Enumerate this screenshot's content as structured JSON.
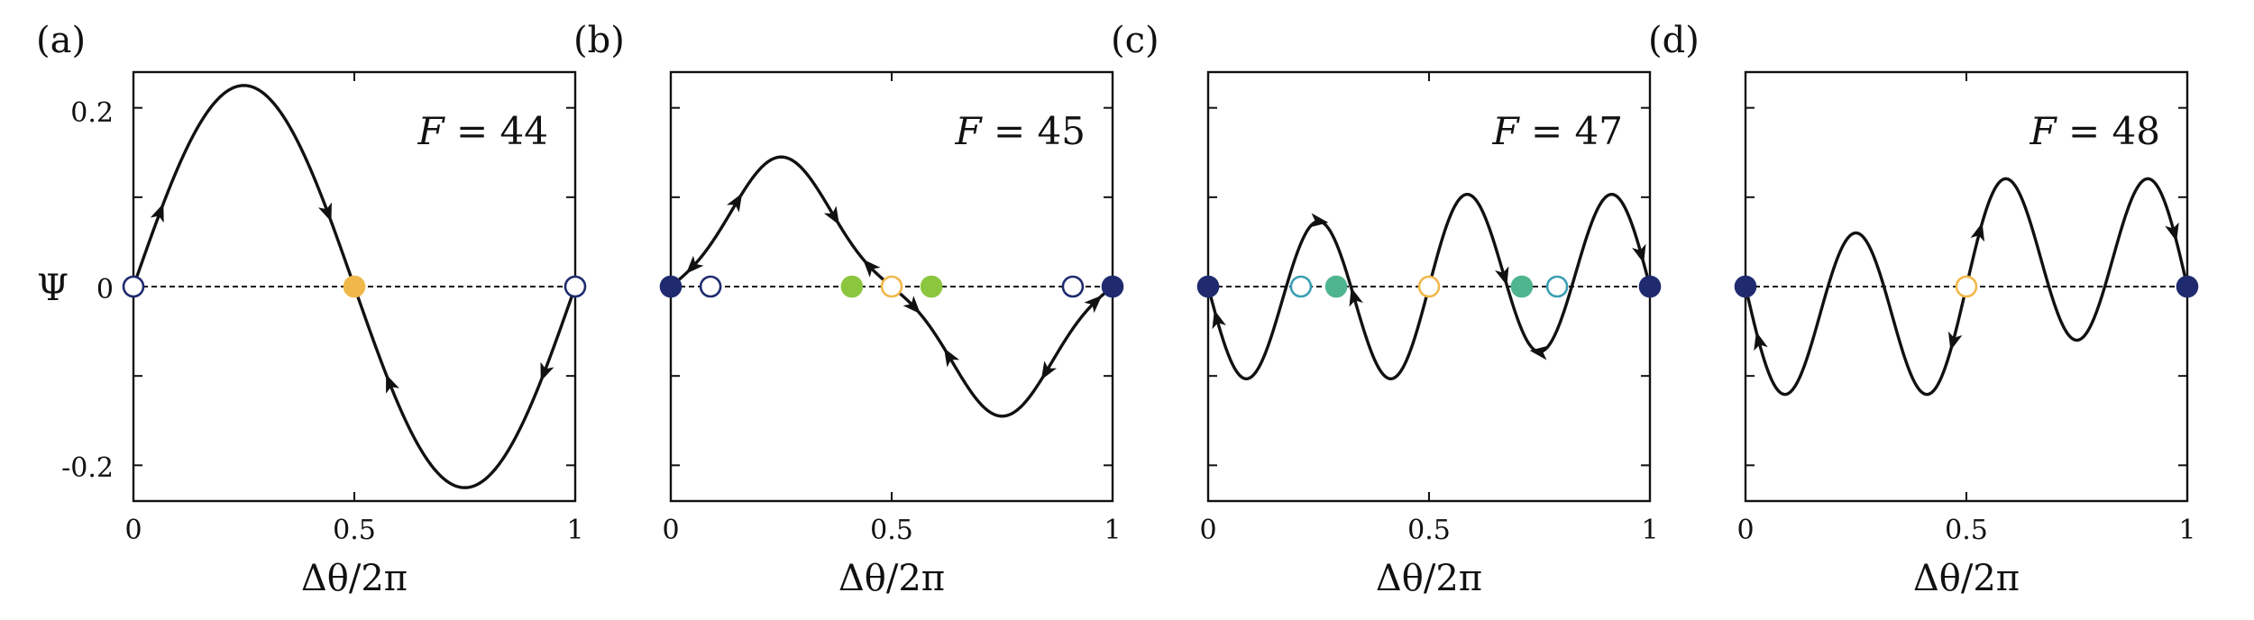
{
  "chart_data": [
    {
      "type": "line",
      "panel_label": "(a)",
      "annotation": {
        "var": "F",
        "eq": " = ",
        "value": "44"
      },
      "xlabel": "Δθ/2π",
      "ylabel": "Ψ",
      "xlim": [
        0,
        1
      ],
      "ylim": [
        -0.24,
        0.24
      ],
      "xticks": [
        "0",
        "0.5",
        "1"
      ],
      "yticks": [
        "0.2",
        "0",
        "-0.2"
      ],
      "baseline": {
        "y": 0,
        "style": "dashed"
      },
      "curve": {
        "type": "sin_sum",
        "terms": [
          {
            "k": 1,
            "amp": 0.225
          }
        ]
      },
      "fixed_points": [
        {
          "x": 0,
          "stable": false,
          "color": "#1f2b6e"
        },
        {
          "x": 0.5,
          "stable": true,
          "color": "#f0b84a"
        },
        {
          "x": 1,
          "stable": false,
          "color": "#1f2b6e"
        }
      ],
      "arrows": [
        {
          "x": 0.06,
          "dir": "right"
        },
        {
          "x": 0.44,
          "dir": "right"
        },
        {
          "x": 0.58,
          "dir": "left"
        },
        {
          "x": 0.93,
          "dir": "left"
        }
      ]
    },
    {
      "type": "line",
      "panel_label": "(b)",
      "annotation": {
        "var": "F",
        "eq": " = ",
        "value": "45"
      },
      "xlabel": "Δθ/2π",
      "ylabel": "",
      "xlim": [
        0,
        1
      ],
      "ylim": [
        -0.24,
        0.24
      ],
      "xticks": [
        "0",
        "0.5",
        "1"
      ],
      "yticks": [],
      "baseline": {
        "y": 0,
        "style": "dashed"
      },
      "curve": {
        "type": "sin_sum",
        "terms": [
          {
            "k": 1,
            "amp": 0.125
          },
          {
            "k": 3,
            "amp": -0.02
          }
        ]
      },
      "fixed_points": [
        {
          "x": 0,
          "stable": true,
          "color": "#1f2b6e"
        },
        {
          "x": 0.09,
          "stable": false,
          "color": "#1f2b6e"
        },
        {
          "x": 0.41,
          "stable": true,
          "color": "#8cc63f"
        },
        {
          "x": 0.5,
          "stable": false,
          "color": "#f0b84a"
        },
        {
          "x": 0.59,
          "stable": true,
          "color": "#8cc63f"
        },
        {
          "x": 0.91,
          "stable": false,
          "color": "#1f2b6e"
        },
        {
          "x": 1,
          "stable": true,
          "color": "#1f2b6e"
        }
      ],
      "arrows": [
        {
          "x": 0.05,
          "dir": "left"
        },
        {
          "x": 0.15,
          "dir": "right"
        },
        {
          "x": 0.37,
          "dir": "right"
        },
        {
          "x": 0.45,
          "dir": "left"
        },
        {
          "x": 0.55,
          "dir": "right"
        },
        {
          "x": 0.63,
          "dir": "left"
        },
        {
          "x": 0.85,
          "dir": "left"
        },
        {
          "x": 0.96,
          "dir": "right"
        }
      ]
    },
    {
      "type": "line",
      "panel_label": "(c)",
      "annotation": {
        "var": "F",
        "eq": " = ",
        "value": "47"
      },
      "xlabel": "Δθ/2π",
      "ylabel": "",
      "xlim": [
        0,
        1
      ],
      "ylim": [
        -0.24,
        0.24
      ],
      "xticks": [
        "0",
        "0.5",
        "1"
      ],
      "yticks": [],
      "baseline": {
        "y": 0,
        "style": "dashed"
      },
      "curve": {
        "type": "sin_sum",
        "terms": [
          {
            "k": 1,
            "amp": -0.02
          },
          {
            "k": 3,
            "amp": -0.093
          }
        ]
      },
      "fixed_points": [
        {
          "x": 0,
          "stable": true,
          "color": "#1f2b6e"
        },
        {
          "x": 0.21,
          "stable": false,
          "color": "#3a9fb3"
        },
        {
          "x": 0.29,
          "stable": true,
          "color": "#4fb58f"
        },
        {
          "x": 0.5,
          "stable": false,
          "color": "#f0b84a"
        },
        {
          "x": 0.71,
          "stable": true,
          "color": "#4fb58f"
        },
        {
          "x": 0.79,
          "stable": false,
          "color": "#3a9fb3"
        },
        {
          "x": 1,
          "stable": true,
          "color": "#1f2b6e"
        }
      ],
      "arrows": [
        {
          "x": 0.02,
          "dir": "left"
        },
        {
          "x": 0.25,
          "dir": "right"
        },
        {
          "x": 0.33,
          "dir": "left"
        },
        {
          "x": 0.67,
          "dir": "right"
        },
        {
          "x": 0.75,
          "dir": "left"
        },
        {
          "x": 0.98,
          "dir": "right"
        }
      ]
    },
    {
      "type": "line",
      "panel_label": "(d)",
      "annotation": {
        "var": "F",
        "eq": " = ",
        "value": "48"
      },
      "xlabel": "Δθ/2π",
      "ylabel": "",
      "xlim": [
        0,
        1
      ],
      "ylim": [
        -0.24,
        0.24
      ],
      "xticks": [
        "0",
        "0.5",
        "1"
      ],
      "yticks": [],
      "baseline": {
        "y": 0,
        "style": "dashed"
      },
      "curve": {
        "type": "sin_sum",
        "terms": [
          {
            "k": 1,
            "amp": -0.04
          },
          {
            "k": 3,
            "amp": -0.1
          }
        ]
      },
      "fixed_points": [
        {
          "x": 0,
          "stable": true,
          "color": "#1f2b6e"
        },
        {
          "x": 0.5,
          "stable": false,
          "color": "#f0b84a"
        },
        {
          "x": 1,
          "stable": true,
          "color": "#1f2b6e"
        }
      ],
      "arrows": [
        {
          "x": 0.03,
          "dir": "left"
        },
        {
          "x": 0.47,
          "dir": "left"
        },
        {
          "x": 0.53,
          "dir": "right"
        },
        {
          "x": 0.97,
          "dir": "right"
        }
      ]
    }
  ]
}
